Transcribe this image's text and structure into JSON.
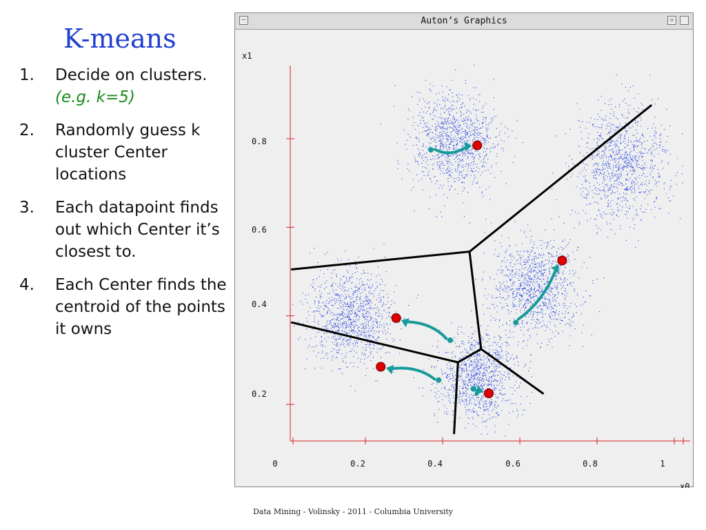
{
  "slide": {
    "title": "K-means",
    "steps": [
      {
        "num": "1.",
        "text": "Decide on clusters.",
        "note": "(e.g. k=5)"
      },
      {
        "num": "2.",
        "text": "Randomly guess k cluster Center locations"
      },
      {
        "num": "3.",
        "text": "Each datapoint finds out which Center it’s closest to."
      },
      {
        "num": "4.",
        "text": "Each Center finds the centroid of the points it owns"
      }
    ],
    "footer": "Data Mining - Volinsky - 2011 -  Columbia University"
  },
  "window": {
    "title": "Auton’s Graphics",
    "min_glyph": "—",
    "restore_glyph": "▫"
  },
  "colors": {
    "axis": "#d62020",
    "points": "#2040e0",
    "center": "#e00000",
    "arrow": "#169a9a",
    "boundary": "#000000"
  },
  "chart_data": {
    "type": "scatter",
    "xlabel": "x0",
    "ylabel": "x1",
    "xlim": [
      0,
      1.05
    ],
    "ylim": [
      0.1,
      0.9
    ],
    "x_ticks": [
      "0",
      "0.2",
      "0.4",
      "0.6",
      "0.8",
      "1"
    ],
    "y_ticks": [
      "0.2",
      "0.4",
      "0.6",
      "0.8"
    ],
    "point_clusters": [
      {
        "center": [
          0.46,
          0.77
        ],
        "spread": 0.055
      },
      {
        "center": [
          0.89,
          0.72
        ],
        "spread": 0.06
      },
      {
        "center": [
          0.67,
          0.44
        ],
        "spread": 0.055
      },
      {
        "center": [
          0.19,
          0.37
        ],
        "spread": 0.055
      },
      {
        "center": [
          0.52,
          0.24
        ],
        "spread": 0.05
      }
    ],
    "centers": [
      {
        "from": [
          0.4,
          0.75
        ],
        "to": [
          0.52,
          0.76
        ]
      },
      {
        "from": [
          0.62,
          0.36
        ],
        "to": [
          0.74,
          0.5
        ]
      },
      {
        "from": [
          0.45,
          0.32
        ],
        "to": [
          0.31,
          0.37
        ]
      },
      {
        "from": [
          0.42,
          0.23
        ],
        "to": [
          0.27,
          0.26
        ]
      },
      {
        "from": [
          0.51,
          0.21
        ],
        "to": [
          0.55,
          0.2
        ]
      }
    ],
    "boundaries": [
      {
        "from": [
          0.04,
          0.48
        ],
        "to": [
          0.5,
          0.52
        ]
      },
      {
        "from": [
          0.5,
          0.52
        ],
        "to": [
          0.97,
          0.85
        ]
      },
      {
        "from": [
          0.5,
          0.52
        ],
        "to": [
          0.53,
          0.3
        ]
      },
      {
        "from": [
          0.04,
          0.36
        ],
        "to": [
          0.47,
          0.27
        ]
      },
      {
        "from": [
          0.47,
          0.27
        ],
        "to": [
          0.53,
          0.3
        ]
      },
      {
        "from": [
          0.53,
          0.3
        ],
        "to": [
          0.69,
          0.2
        ]
      },
      {
        "from": [
          0.47,
          0.27
        ],
        "to": [
          0.46,
          0.11
        ]
      }
    ]
  }
}
